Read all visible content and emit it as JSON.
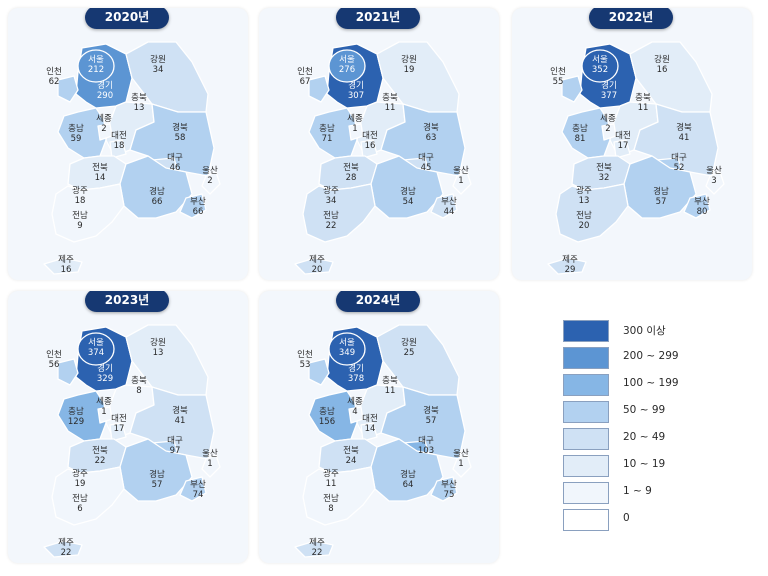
{
  "colors": {
    "bin_0": "#ffffff",
    "bin_1_9": "#f1f6fc",
    "bin_10_19": "#e2edf8",
    "bin_20_49": "#cfe1f4",
    "bin_50_99": "#b2d1f0",
    "bin_100_199": "#86b6e5",
    "bin_200_299": "#5c95d3",
    "bin_300_plus": "#2c62b0",
    "title_bg": "#163872"
  },
  "panels": [
    {
      "year": "2020년",
      "values": {
        "서울": 212,
        "경기": 290,
        "인천": 62,
        "강원": 34,
        "충북": 13,
        "세종": 2,
        "충남": 59,
        "대전": 18,
        "경북": 58,
        "대구": 46,
        "울산": 2,
        "전북": 14,
        "광주": 18,
        "경남": 66,
        "부산": 66,
        "전남": 9,
        "제주": 16
      }
    },
    {
      "year": "2021년",
      "values": {
        "서울": 276,
        "경기": 307,
        "인천": 67,
        "강원": 19,
        "충북": 11,
        "세종": 1,
        "충남": 71,
        "대전": 16,
        "경북": 63,
        "대구": 45,
        "울산": 1,
        "전북": 28,
        "광주": 34,
        "경남": 54,
        "부산": 44,
        "전남": 22,
        "제주": 20
      }
    },
    {
      "year": "2022년",
      "values": {
        "서울": 352,
        "경기": 377,
        "인천": 55,
        "강원": 16,
        "충북": 11,
        "세종": 2,
        "충남": 81,
        "대전": 17,
        "경북": 41,
        "대구": 52,
        "울산": 3,
        "전북": 32,
        "광주": 13,
        "경남": 57,
        "부산": 80,
        "전남": 20,
        "제주": 29
      }
    },
    {
      "year": "2023년",
      "values": {
        "서울": 374,
        "경기": 329,
        "인천": 56,
        "강원": 13,
        "충북": 8,
        "세종": 1,
        "충남": 129,
        "대전": 17,
        "경북": 41,
        "대구": 97,
        "울산": 1,
        "전북": 22,
        "광주": 19,
        "경남": 57,
        "부산": 74,
        "전남": 6,
        "제주": 22
      }
    },
    {
      "year": "2024년",
      "values": {
        "서울": 349,
        "경기": 378,
        "인천": 53,
        "강원": 25,
        "충북": 11,
        "세종": 4,
        "충남": 156,
        "대전": 14,
        "경북": 57,
        "대구": 103,
        "울산": 1,
        "전북": 24,
        "광주": 11,
        "경남": 64,
        "부산": 75,
        "전남": 8,
        "제주": 22
      }
    }
  ],
  "legend": [
    {
      "label": "300 이상",
      "color": "#2c62b0"
    },
    {
      "label": "200 ~ 299",
      "color": "#5c95d3"
    },
    {
      "label": "100 ~ 199",
      "color": "#86b6e5"
    },
    {
      "label": "50 ~ 99",
      "color": "#b2d1f0"
    },
    {
      "label": "20 ~ 49",
      "color": "#cfe1f4"
    },
    {
      "label": "10 ~ 19",
      "color": "#e2edf8"
    },
    {
      "label": "1 ~ 9",
      "color": "#f1f6fc"
    },
    {
      "label": "0",
      "color": "#ffffff"
    }
  ]
}
